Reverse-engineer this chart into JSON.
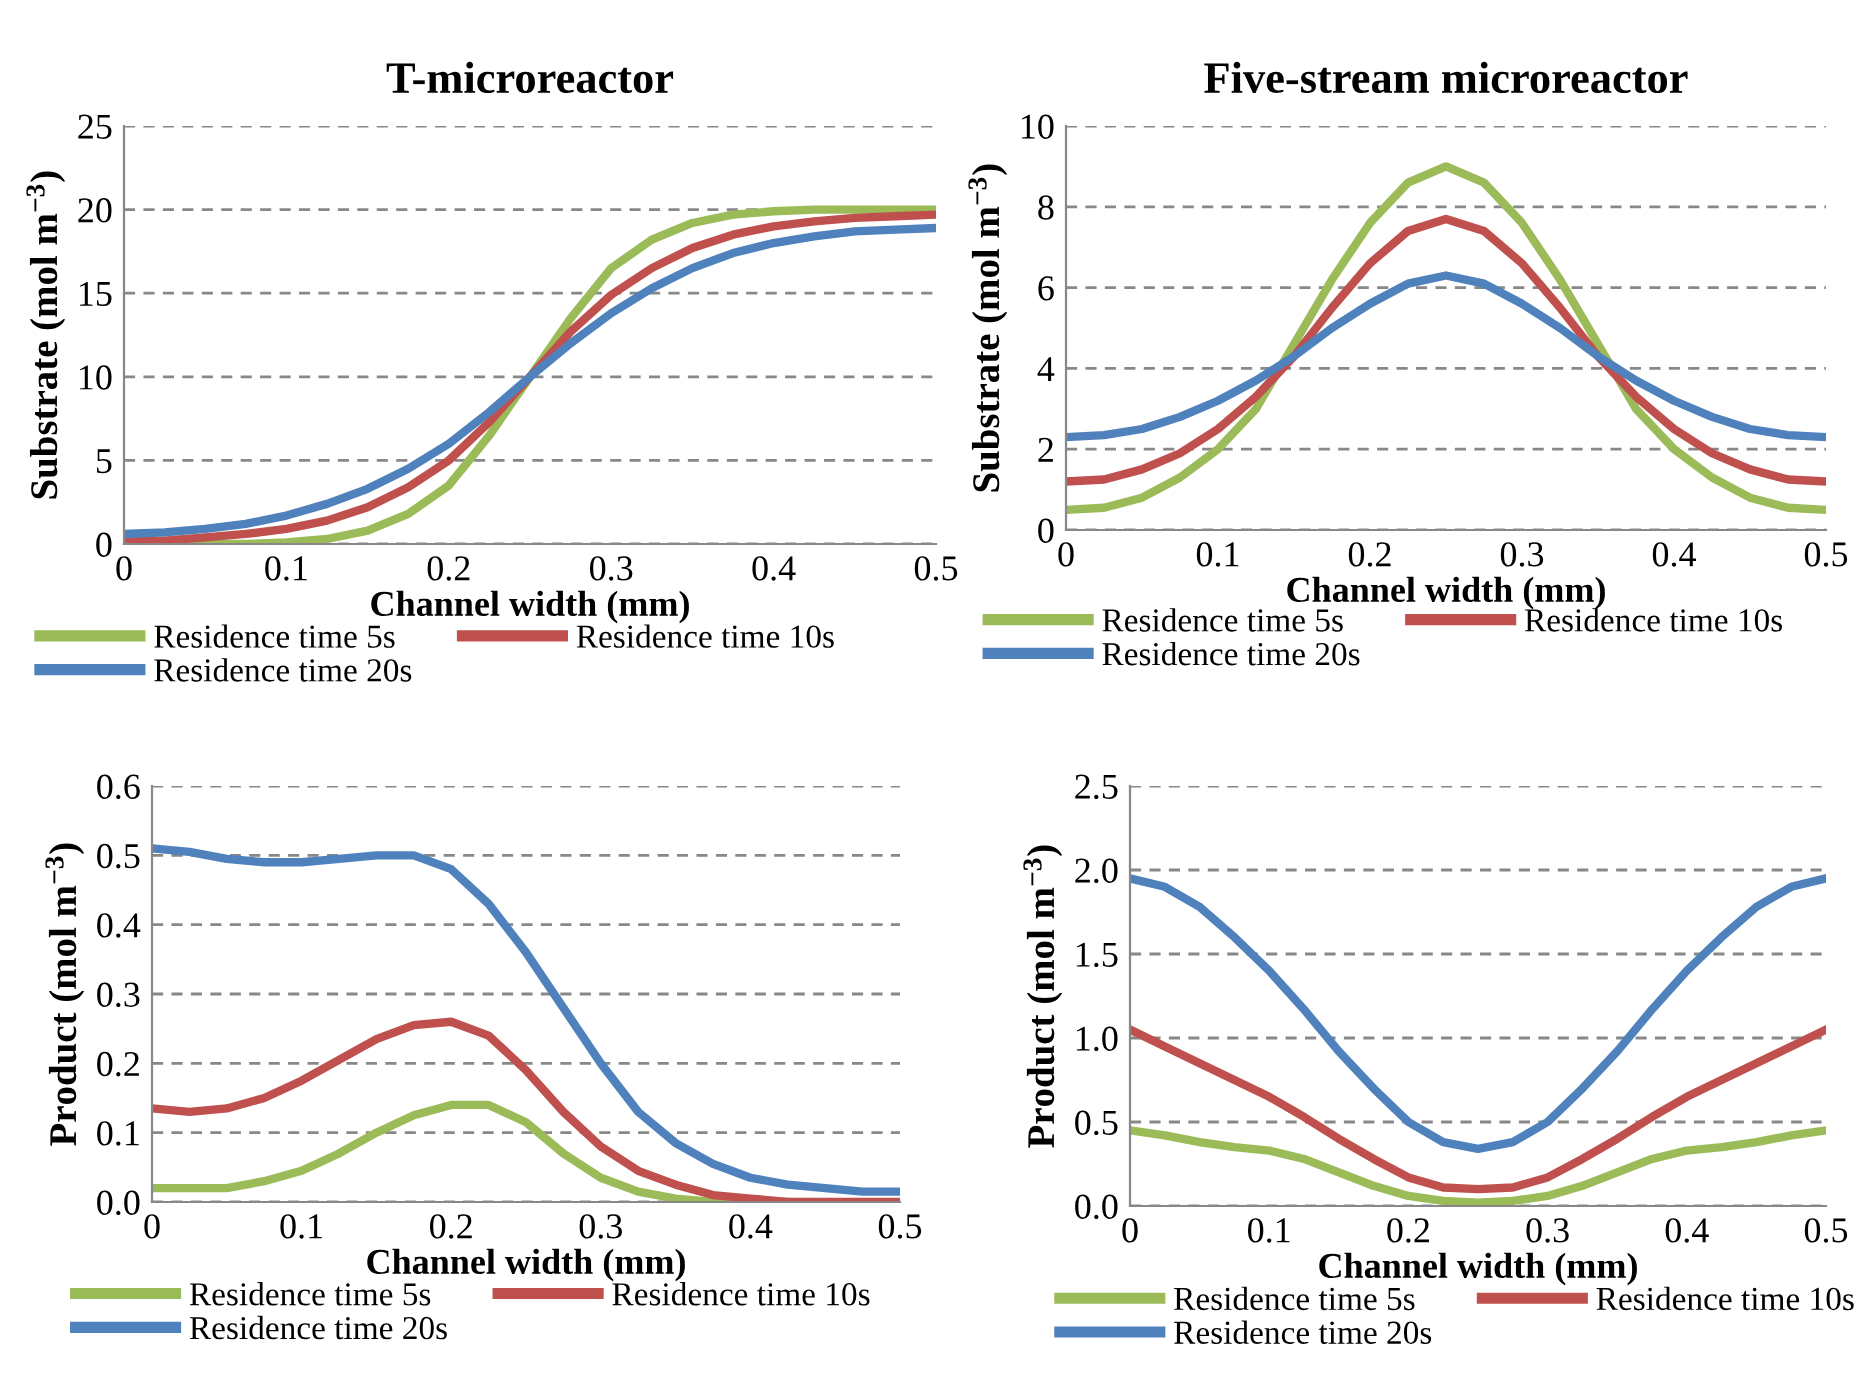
{
  "chart_data": [
    {
      "type": "line",
      "title": "T-microreactor",
      "xlabel": "Channel width (mm)",
      "ylabel": "Substrate (mol m$^{−3}$)",
      "x": [
        0,
        0.025,
        0.05,
        0.075,
        0.1,
        0.125,
        0.15,
        0.175,
        0.2,
        0.225,
        0.25,
        0.275,
        0.3,
        0.325,
        0.35,
        0.375,
        0.4,
        0.425,
        0.45,
        0.475,
        0.5
      ],
      "series": [
        {
          "name": "Residence time 5s",
          "color": "#9bbb59",
          "values": [
            0,
            0,
            0,
            0,
            0.1,
            0.3,
            0.8,
            1.8,
            3.5,
            6.5,
            10,
            13.5,
            16.5,
            18.2,
            19.2,
            19.7,
            19.9,
            20,
            20,
            20,
            20
          ]
        },
        {
          "name": "Residence time 10s",
          "color": "#c0504d",
          "values": [
            0.2,
            0.2,
            0.4,
            0.6,
            0.9,
            1.4,
            2.2,
            3.4,
            5.0,
            7.3,
            10,
            12.7,
            14.9,
            16.5,
            17.7,
            18.5,
            19.0,
            19.3,
            19.5,
            19.6,
            19.7
          ]
        },
        {
          "name": "Residence time 20s",
          "color": "#4f81bd",
          "values": [
            0.6,
            0.7,
            0.9,
            1.2,
            1.7,
            2.4,
            3.3,
            4.5,
            6.0,
            7.9,
            10,
            12.0,
            13.8,
            15.3,
            16.5,
            17.4,
            18.0,
            18.4,
            18.7,
            18.8,
            18.9
          ]
        }
      ],
      "xlim": [
        0,
        0.5
      ],
      "xticks": [
        0,
        0.1,
        0.2,
        0.3,
        0.4,
        0.5
      ],
      "ylim": [
        0,
        25
      ],
      "yticks": [
        0,
        5,
        10,
        15,
        20,
        25
      ],
      "grid": "y",
      "legend": "bottom",
      "marker": "none",
      "line_style": "solid"
    },
    {
      "type": "line",
      "title": "Five-stream microreactor",
      "xlabel": "Channel width (mm)",
      "ylabel": "Substrate (mol m$^{−3}$)",
      "x": [
        0,
        0.025,
        0.05,
        0.075,
        0.1,
        0.125,
        0.15,
        0.175,
        0.2,
        0.225,
        0.25,
        0.275,
        0.3,
        0.325,
        0.35,
        0.375,
        0.4,
        0.425,
        0.45,
        0.475,
        0.5
      ],
      "series": [
        {
          "name": "Residence time 5s",
          "color": "#9bbb59",
          "values": [
            0.5,
            0.55,
            0.8,
            1.3,
            2.0,
            3.0,
            4.6,
            6.2,
            7.6,
            8.6,
            9.0,
            8.6,
            7.6,
            6.2,
            4.6,
            3.0,
            2.0,
            1.3,
            0.8,
            0.55,
            0.5
          ]
        },
        {
          "name": "Residence time 10s",
          "color": "#c0504d",
          "values": [
            1.2,
            1.25,
            1.5,
            1.9,
            2.5,
            3.3,
            4.3,
            5.5,
            6.6,
            7.4,
            7.7,
            7.4,
            6.6,
            5.5,
            4.3,
            3.3,
            2.5,
            1.9,
            1.5,
            1.25,
            1.2
          ]
        },
        {
          "name": "Residence time 20s",
          "color": "#4f81bd",
          "values": [
            2.3,
            2.35,
            2.5,
            2.8,
            3.2,
            3.7,
            4.3,
            5.0,
            5.6,
            6.1,
            6.3,
            6.1,
            5.6,
            5.0,
            4.3,
            3.7,
            3.2,
            2.8,
            2.5,
            2.35,
            2.3
          ]
        }
      ],
      "xlim": [
        0,
        0.5
      ],
      "xticks": [
        0,
        0.1,
        0.2,
        0.3,
        0.4,
        0.5
      ],
      "ylim": [
        0,
        10
      ],
      "yticks": [
        0,
        2,
        4,
        6,
        8,
        10
      ],
      "grid": "y",
      "legend": "bottom",
      "marker": "none",
      "line_style": "solid"
    },
    {
      "type": "line",
      "xlabel": "Channel width (mm)",
      "ylabel": "Product (mol m$^{−3}$)",
      "x": [
        0,
        0.025,
        0.05,
        0.075,
        0.1,
        0.125,
        0.15,
        0.175,
        0.2,
        0.225,
        0.25,
        0.275,
        0.3,
        0.325,
        0.35,
        0.375,
        0.4,
        0.425,
        0.45,
        0.475,
        0.5
      ],
      "series": [
        {
          "name": "Residence time 5s",
          "color": "#9bbb59",
          "values": [
            0.02,
            0.02,
            0.02,
            0.03,
            0.045,
            0.07,
            0.1,
            0.125,
            0.14,
            0.14,
            0.115,
            0.07,
            0.035,
            0.015,
            0.005,
            0,
            0,
            0,
            null,
            null,
            null
          ]
        },
        {
          "name": "Residence time 10s",
          "color": "#c0504d",
          "values": [
            0.135,
            0.13,
            0.135,
            0.15,
            0.175,
            0.205,
            0.235,
            0.255,
            0.26,
            0.24,
            0.19,
            0.13,
            0.08,
            0.045,
            0.025,
            0.01,
            0.005,
            0,
            0,
            0,
            0
          ]
        },
        {
          "name": "Residence time 20s",
          "color": "#4f81bd",
          "values": [
            0.51,
            0.505,
            0.495,
            0.49,
            0.49,
            0.495,
            0.5,
            0.5,
            0.48,
            0.43,
            0.36,
            0.28,
            0.2,
            0.13,
            0.085,
            0.055,
            0.035,
            0.025,
            0.02,
            0.015,
            0.015
          ]
        }
      ],
      "xlim": [
        0,
        0.5
      ],
      "xticks": [
        0,
        0.1,
        0.2,
        0.3,
        0.4,
        0.5
      ],
      "ylim": [
        0,
        0.6
      ],
      "yticks": [
        {
          "value": 0,
          "label": "0.0"
        },
        0.1,
        0.2,
        0.3,
        0.4,
        0.5,
        0.6
      ],
      "grid": "y",
      "legend": "bottom",
      "marker": "none",
      "line_style": "solid"
    },
    {
      "type": "line",
      "xlabel": "Channel width (mm)",
      "ylabel": "Product (mol m$^{−3}$)",
      "x": [
        0,
        0.025,
        0.05,
        0.075,
        0.1,
        0.125,
        0.15,
        0.175,
        0.2,
        0.225,
        0.25,
        0.275,
        0.3,
        0.325,
        0.35,
        0.375,
        0.4,
        0.425,
        0.45,
        0.475,
        0.5
      ],
      "series": [
        {
          "name": "Residence time 5s",
          "color": "#9bbb59",
          "values": [
            0.45,
            0.42,
            0.38,
            0.35,
            0.33,
            0.28,
            0.2,
            0.12,
            0.06,
            0.03,
            0.02,
            0.03,
            0.06,
            0.12,
            0.2,
            0.28,
            0.33,
            0.35,
            0.38,
            0.42,
            0.45
          ]
        },
        {
          "name": "Residence time 10s",
          "color": "#c0504d",
          "values": [
            1.05,
            0.95,
            0.85,
            0.75,
            0.65,
            0.53,
            0.4,
            0.28,
            0.17,
            0.11,
            0.1,
            0.11,
            0.17,
            0.28,
            0.4,
            0.53,
            0.65,
            0.75,
            0.85,
            0.95,
            1.05
          ]
        },
        {
          "name": "Residence time 20s",
          "color": "#4f81bd",
          "values": [
            1.95,
            1.9,
            1.78,
            1.6,
            1.4,
            1.17,
            0.92,
            0.7,
            0.5,
            0.38,
            0.34,
            0.38,
            0.5,
            0.7,
            0.92,
            1.17,
            1.4,
            1.6,
            1.78,
            1.9,
            1.95
          ]
        }
      ],
      "xlim": [
        0,
        0.5
      ],
      "xticks": [
        0,
        0.1,
        0.2,
        0.3,
        0.4,
        0.5
      ],
      "ylim": [
        0,
        2.5
      ],
      "yticks": [
        {
          "value": 0,
          "label": "0.0"
        },
        0.5,
        {
          "value": 1,
          "label": "1.0"
        },
        1.5,
        {
          "value": 2,
          "label": "2.0"
        },
        2.5
      ],
      "grid": "y",
      "legend": "bottom",
      "marker": "none",
      "line_style": "solid"
    }
  ]
}
